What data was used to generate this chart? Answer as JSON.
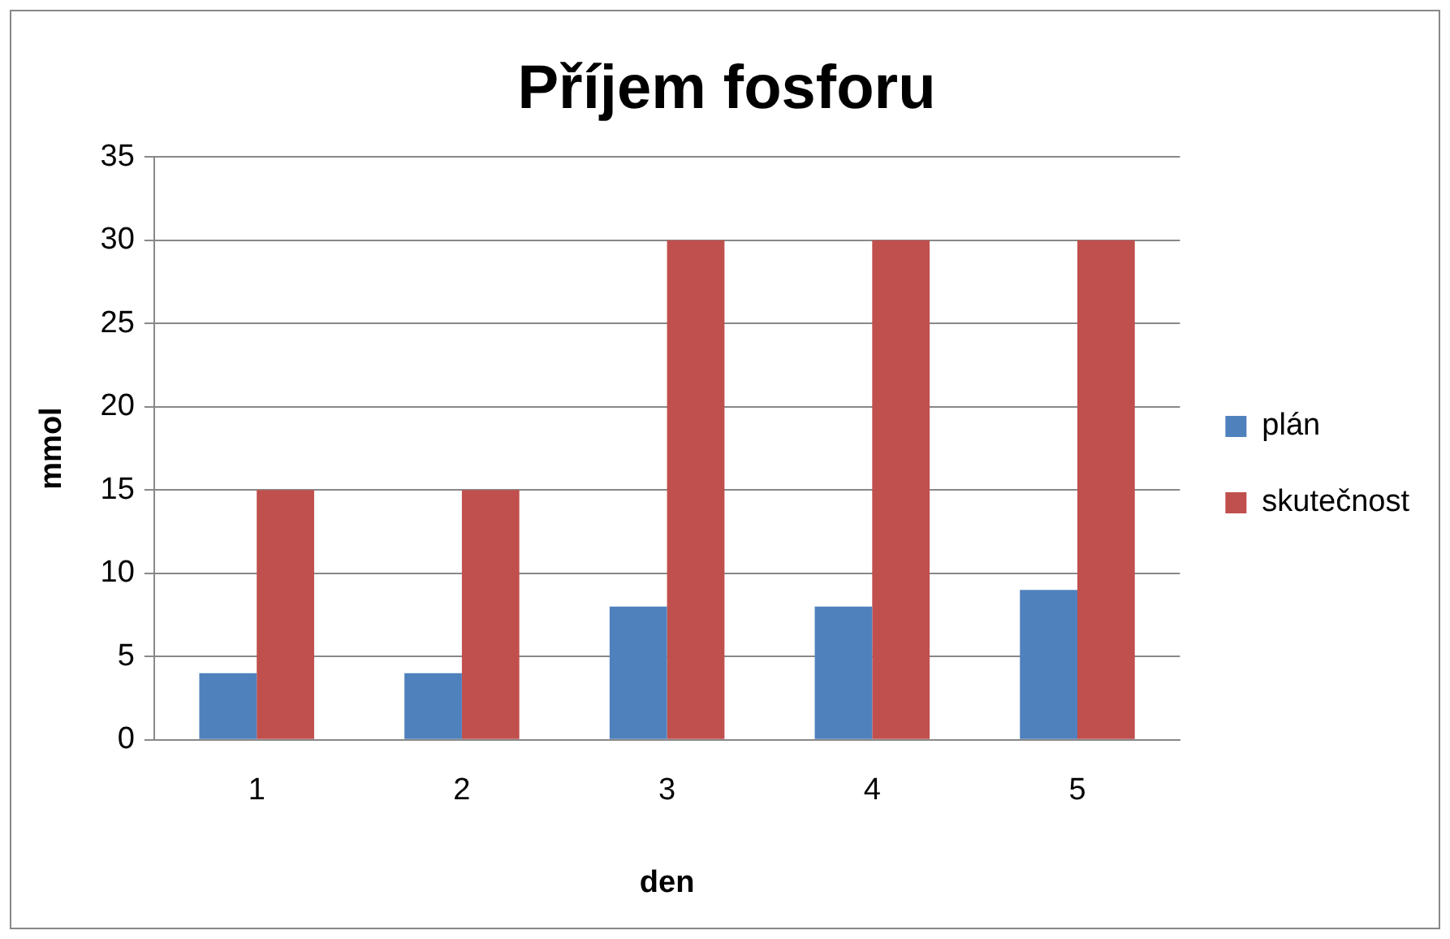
{
  "chart_data": {
    "type": "bar",
    "title": "Příjem fosforu",
    "xlabel": "den",
    "ylabel": "mmol",
    "categories": [
      "1",
      "2",
      "3",
      "4",
      "5"
    ],
    "series": [
      {
        "name": "plán",
        "color": "#4f81bd",
        "values": [
          4,
          4,
          8,
          8,
          9
        ]
      },
      {
        "name": "skutečnost",
        "color": "#c0504d",
        "values": [
          15,
          15,
          30,
          30,
          30
        ]
      }
    ],
    "ylim": [
      0,
      35
    ],
    "yticks": [
      0,
      5,
      10,
      15,
      20,
      25,
      30,
      35
    ],
    "grid": "y",
    "legend": "right"
  }
}
